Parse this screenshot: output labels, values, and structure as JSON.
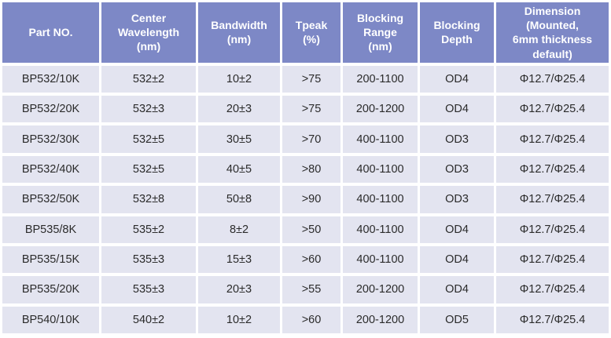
{
  "colors": {
    "header_bg": "#7d88c6",
    "header_text": "#ffffff",
    "cell_bg": "#e3e4f0",
    "cell_text": "#2b2b2b",
    "page_bg": "#ffffff"
  },
  "table": {
    "columns": [
      {
        "id": "part_no",
        "label": "Part NO."
      },
      {
        "id": "center_wavelength",
        "label": "Center\nWavelength\n(nm)"
      },
      {
        "id": "bandwidth",
        "label": "Bandwidth\n(nm)"
      },
      {
        "id": "tpeak",
        "label": "Tpeak\n(%)"
      },
      {
        "id": "blocking_range",
        "label": "Blocking\nRange\n(nm)"
      },
      {
        "id": "blocking_depth",
        "label": "Blocking\nDepth"
      },
      {
        "id": "dimension",
        "label": "Dimension\n(Mounted,\n6mm thickness\ndefault)"
      }
    ],
    "rows": [
      [
        "BP532/10K",
        "532±2",
        "10±2",
        ">75",
        "200-1100",
        "OD4",
        "Φ12.7/Φ25.4"
      ],
      [
        "BP532/20K",
        "532±3",
        "20±3",
        ">75",
        "200-1200",
        "OD4",
        "Φ12.7/Φ25.4"
      ],
      [
        "BP532/30K",
        "532±5",
        "30±5",
        ">70",
        "400-1100",
        "OD3",
        "Φ12.7/Φ25.4"
      ],
      [
        "BP532/40K",
        "532±5",
        "40±5",
        ">80",
        "400-1100",
        "OD3",
        "Φ12.7/Φ25.4"
      ],
      [
        "BP532/50K",
        "532±8",
        "50±8",
        ">90",
        "400-1100",
        "OD3",
        "Φ12.7/Φ25.4"
      ],
      [
        "BP535/8K",
        "535±2",
        "8±2",
        ">50",
        "400-1100",
        "OD4",
        "Φ12.7/Φ25.4"
      ],
      [
        "BP535/15K",
        "535±3",
        "15±3",
        ">60",
        "400-1100",
        "OD4",
        "Φ12.7/Φ25.4"
      ],
      [
        "BP535/20K",
        "535±3",
        "20±3",
        ">55",
        "200-1200",
        "OD4",
        "Φ12.7/Φ25.4"
      ],
      [
        "BP540/10K",
        "540±2",
        "10±2",
        ">60",
        "200-1200",
        "OD5",
        "Φ12.7/Φ25.4"
      ]
    ]
  }
}
